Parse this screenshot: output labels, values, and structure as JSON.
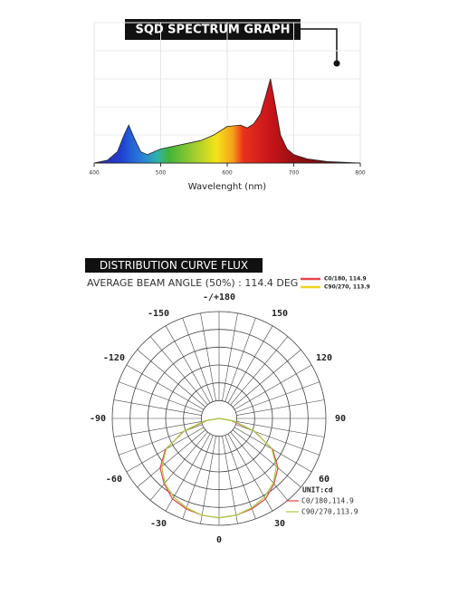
{
  "spectrum": {
    "chart_data": {
      "type": "area",
      "title": "SQD SPECTRUM GRAPH",
      "x_label": "Wavelenght (nm)",
      "x": [
        400,
        420,
        435,
        445,
        452,
        460,
        470,
        480,
        490,
        500,
        520,
        540,
        560,
        580,
        600,
        620,
        630,
        640,
        650,
        658,
        665,
        672,
        680,
        690,
        700,
        720,
        750,
        800
      ],
      "values": [
        0,
        2,
        8,
        20,
        27,
        18,
        8,
        6,
        8,
        10,
        12,
        14,
        16,
        20,
        26,
        27,
        25,
        28,
        35,
        48,
        60,
        42,
        20,
        10,
        6,
        3,
        1,
        0
      ],
      "xlim": [
        400,
        800
      ],
      "xticks": [
        400,
        500,
        600,
        700,
        800
      ],
      "ylim": [
        0,
        100
      ],
      "grid": true
    }
  },
  "distribution": {
    "chart_data": {
      "type": "polar",
      "title": "DISTRIBUTION CURVE FLUX",
      "subtitle": "AVERAGE BEAM ANGLE  (50%) : 114.4 DEG",
      "legend_top": [
        {
          "label": "C0/180, 114.9",
          "color": "#e8444a"
        },
        {
          "label": "C90/270, 113.9",
          "color": "#f2d21c"
        }
      ],
      "unit_label": "UNIT:cd",
      "angle_ticks": [
        0,
        30,
        60,
        90,
        120,
        150,
        {
          "value": 180,
          "label": "-/+180"
        },
        -150,
        -120,
        -90,
        -60,
        -30
      ],
      "rlim": [
        0,
        100
      ],
      "theta": [
        -90,
        -80,
        -70,
        -60,
        -50,
        -40,
        -30,
        -20,
        -10,
        0,
        10,
        20,
        30,
        40,
        50,
        60,
        70,
        80,
        90
      ],
      "series": [
        {
          "name": "C0/180,114.9",
          "color": "#e0464a",
          "values": [
            0,
            12,
            35,
            58,
            72,
            80,
            87,
            90,
            92,
            93,
            92,
            90,
            87,
            80,
            72,
            58,
            35,
            12,
            0
          ]
        },
        {
          "name": "C90/270,113.9",
          "color": "#a8cf45",
          "values": [
            0,
            14,
            36,
            57,
            70,
            79,
            85,
            89,
            92,
            93,
            92,
            89,
            85,
            79,
            70,
            57,
            36,
            14,
            0
          ]
        }
      ]
    }
  }
}
